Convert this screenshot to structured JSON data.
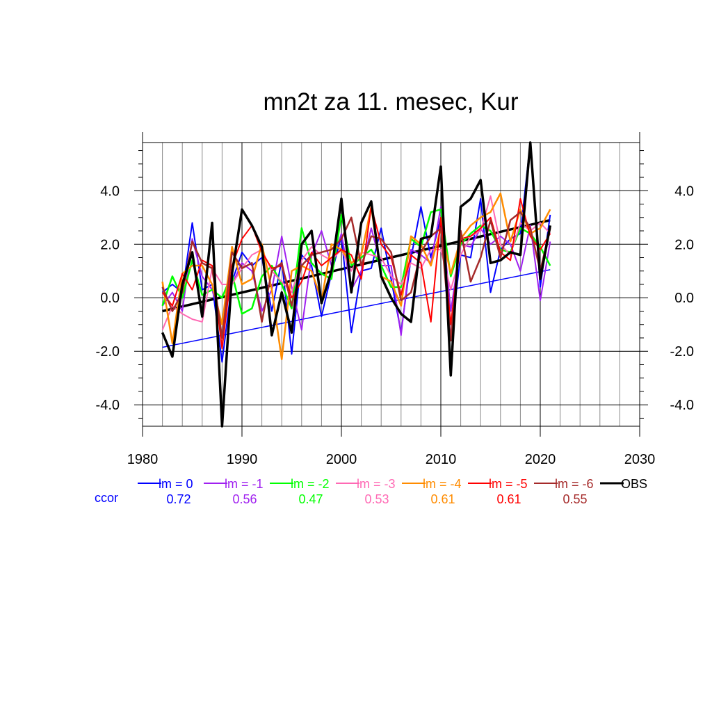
{
  "title": "mn2t za 11. mesec, Kur",
  "ccor_label": "ccor",
  "colors": {
    "ccor_label": "#0000ff",
    "grid": "#000000",
    "axis": "#000000"
  },
  "chart_data": {
    "type": "line",
    "title": "mn2t za 11. mesec, Kur",
    "xlim": [
      1980,
      2030
    ],
    "ylim": [
      -4.8,
      5.8
    ],
    "x_ticks": [
      1980,
      1990,
      2000,
      2010,
      2020,
      2030
    ],
    "y_ticks": [
      -4.0,
      -2.0,
      0.0,
      2.0,
      4.0
    ],
    "y_tick_labels": [
      "-4.0",
      "-2.0",
      "0.0",
      "2.0",
      "4.0"
    ],
    "x_minor_step": 2,
    "y_minor_step": 0.5,
    "grid": true,
    "legend_position": "bottom",
    "x": [
      1982,
      1983,
      1984,
      1985,
      1986,
      1987,
      1988,
      1989,
      1990,
      1991,
      1992,
      1993,
      1994,
      1995,
      1996,
      1997,
      1998,
      1999,
      2000,
      2001,
      2002,
      2003,
      2004,
      2005,
      2006,
      2007,
      2008,
      2009,
      2010,
      2011,
      2012,
      2013,
      2014,
      2015,
      2016,
      2017,
      2018,
      2019,
      2020,
      2021
    ],
    "series": [
      {
        "name": "lm = 0",
        "color": "#0000ff",
        "width": 2,
        "ccor": "0.72",
        "values": [
          0.2,
          0.5,
          0.2,
          2.8,
          0.3,
          0.5,
          -2.4,
          0.6,
          1.7,
          1.2,
          1.5,
          -0.5,
          1.4,
          -2.1,
          1.6,
          1.2,
          -0.7,
          0.9,
          2.3,
          -1.3,
          1.0,
          1.1,
          2.6,
          0.7,
          -1.3,
          1.5,
          3.4,
          1.5,
          3.0,
          -1.5,
          1.6,
          1.5,
          3.7,
          0.2,
          1.8,
          2.2,
          2.4,
          5.8,
          0.4,
          3.1
        ],
        "trend": [
          -1.85,
          1.05
        ]
      },
      {
        "name": "lm = -1",
        "color": "#a020f0",
        "width": 2,
        "ccor": "0.56",
        "values": [
          -0.3,
          0.2,
          -0.5,
          2.2,
          0.8,
          0.3,
          -1.0,
          0.5,
          1.3,
          1.0,
          -0.5,
          0.3,
          2.3,
          0.4,
          -1.2,
          1.6,
          2.5,
          1.2,
          2.4,
          0.3,
          1.0,
          2.6,
          1.2,
          1.2,
          -1.4,
          1.8,
          1.6,
          1.3,
          3.4,
          -0.5,
          2.0,
          1.9,
          2.6,
          2.0,
          2.3,
          2.0,
          1.0,
          2.7,
          -0.1,
          2.1
        ]
      },
      {
        "name": "lm = -2",
        "color": "#00ff00",
        "width": 2.5,
        "ccor": "0.47",
        "values": [
          -0.3,
          0.8,
          0.0,
          1.4,
          0.1,
          0.3,
          0.0,
          0.9,
          -0.6,
          -0.4,
          0.8,
          1.2,
          0.5,
          -0.4,
          2.6,
          1.3,
          0.9,
          0.7,
          3.1,
          1.2,
          1.5,
          1.8,
          1.2,
          0.4,
          0.4,
          2.2,
          1.9,
          3.2,
          3.3,
          0.8,
          2.0,
          2.4,
          2.7,
          2.5,
          1.8,
          1.7,
          2.6,
          2.4,
          1.9,
          1.2
        ]
      },
      {
        "name": "lm = -3",
        "color": "#ff69b4",
        "width": 2,
        "ccor": "0.53",
        "values": [
          -1.2,
          -0.3,
          -0.6,
          -0.8,
          -0.9,
          1.1,
          0.5,
          0.5,
          1.1,
          1.6,
          1.8,
          1.0,
          0.6,
          0.2,
          1.4,
          1.9,
          1.6,
          1.4,
          1.8,
          1.0,
          1.7,
          1.6,
          1.5,
          0.8,
          0.5,
          1.3,
          1.1,
          1.8,
          1.8,
          0.3,
          1.6,
          2.3,
          2.5,
          3.8,
          2.0,
          1.6,
          2.8,
          2.5,
          2.8,
          2.4
        ]
      },
      {
        "name": "lm = -4",
        "color": "#ff8c00",
        "width": 2.5,
        "ccor": "0.61",
        "values": [
          0.6,
          -1.7,
          0.9,
          1.2,
          1.2,
          0.5,
          -1.0,
          1.9,
          0.5,
          0.7,
          2.0,
          0.3,
          -2.3,
          1.0,
          1.2,
          1.0,
          -0.1,
          2.0,
          1.8,
          1.3,
          1.6,
          3.4,
          0.8,
          0.6,
          -0.3,
          2.3,
          2.0,
          1.2,
          2.6,
          0.9,
          2.2,
          2.7,
          3.0,
          3.2,
          3.9,
          2.1,
          3.3,
          2.4,
          2.6,
          3.3
        ]
      },
      {
        "name": "lm = -5",
        "color": "#ff0000",
        "width": 2,
        "ccor": "0.61",
        "values": [
          0.2,
          -0.3,
          0.9,
          0.3,
          1.4,
          1.2,
          -1.9,
          1.2,
          2.2,
          2.7,
          1.7,
          1.1,
          1.2,
          0.0,
          0.6,
          1.7,
          1.2,
          1.5,
          1.8,
          1.6,
          0.7,
          3.4,
          2.0,
          1.5,
          0.1,
          1.6,
          1.3,
          -0.9,
          3.0,
          -1.0,
          2.2,
          2.3,
          2.6,
          3.0,
          1.7,
          1.4,
          3.7,
          2.3,
          1.8,
          2.4
        ]
      },
      {
        "name": "lm = -6",
        "color": "#a52a2a",
        "width": 2.5,
        "ccor": "0.55",
        "values": [
          0.4,
          -0.5,
          0.2,
          2.1,
          1.3,
          1.1,
          -1.5,
          1.7,
          1.1,
          1.3,
          -0.9,
          1.0,
          1.3,
          -0.3,
          1.2,
          1.6,
          1.7,
          1.8,
          2.2,
          3.0,
          1.2,
          2.3,
          2.2,
          1.7,
          -0.1,
          0.2,
          1.7,
          2.3,
          2.6,
          -1.6,
          2.5,
          0.6,
          1.5,
          2.9,
          1.5,
          2.9,
          3.2,
          2.6,
          1.0,
          2.6
        ]
      },
      {
        "name": "OBS",
        "color": "#000000",
        "width": 3.5,
        "ccor": "",
        "values": [
          -1.3,
          -2.2,
          0.5,
          1.7,
          -0.7,
          2.8,
          -4.8,
          0.9,
          3.3,
          2.7,
          1.9,
          -1.4,
          0.2,
          -1.3,
          2.0,
          2.5,
          -0.2,
          1.0,
          3.7,
          0.2,
          2.8,
          3.6,
          0.8,
          0.0,
          -0.6,
          -0.9,
          2.2,
          2.3,
          4.9,
          -2.9,
          3.4,
          3.7,
          4.4,
          1.3,
          1.4,
          1.7,
          1.6,
          5.8,
          0.7,
          2.7
        ],
        "trend": [
          -0.5,
          2.9
        ]
      }
    ]
  }
}
